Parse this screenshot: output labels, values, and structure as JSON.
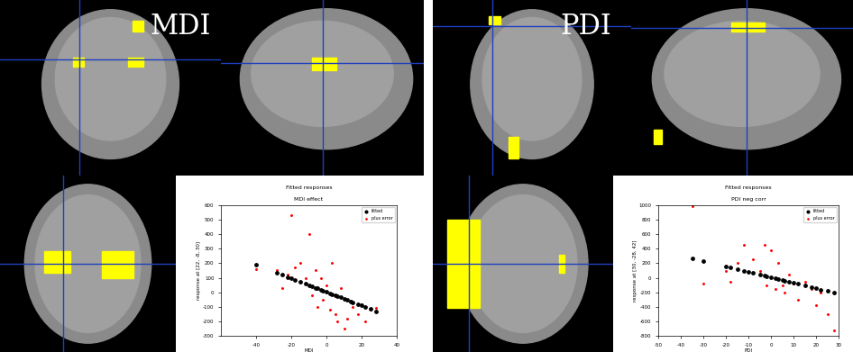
{
  "images": [
    {
      "label": "MDI"
    },
    {
      "label": "PDI"
    }
  ],
  "chart_data": [
    {
      "type": "scatter",
      "title": "Fitted responses",
      "subtitle": "MDI effect",
      "x_label": "MDI",
      "y_label": "response at [22, -8, 30]",
      "x": [
        -40,
        -28,
        -25,
        -22,
        -20,
        -18,
        -15,
        -12,
        -10,
        -8,
        -6,
        -5,
        -3,
        -2,
        0,
        2,
        3,
        5,
        6,
        8,
        10,
        12,
        14,
        15,
        18,
        20,
        22,
        25,
        28
      ],
      "series": [
        {
          "name": "fitted",
          "color": "#000000",
          "marker": "o",
          "values": [
            190,
            133,
            120,
            105,
            96,
            87,
            73,
            58,
            49,
            40,
            30,
            26,
            16,
            11,
            2,
            -7,
            -12,
            -21,
            -26,
            -36,
            -45,
            -54,
            -64,
            -68,
            -83,
            -92,
            -101,
            -115,
            -130
          ]
        },
        {
          "name": "plus error",
          "color": "#ff0000",
          "marker": ".",
          "values": [
            160,
            150,
            30,
            120,
            530,
            170,
            200,
            100,
            400,
            -20,
            150,
            -100,
            100,
            -50,
            50,
            -120,
            200,
            -150,
            -200,
            30,
            -250,
            -180,
            -60,
            -100,
            -150,
            -80,
            -200,
            -120,
            -110
          ]
        }
      ],
      "xlim": [
        -60,
        40
      ],
      "xticks": [
        -40,
        -20,
        0,
        20,
        40
      ],
      "ylim": [
        -300,
        600
      ],
      "yticks": [
        -300,
        -200,
        -100,
        0,
        100,
        200,
        300,
        400,
        500,
        600
      ],
      "legend": "upper right"
    },
    {
      "type": "scatter",
      "title": "Fitted responses",
      "subtitle": "PDI neg corr",
      "x_label": "PDI",
      "y_label": "response at [30, -28, 42]",
      "x": [
        -35,
        -30,
        -20,
        -18,
        -15,
        -12,
        -10,
        -8,
        -5,
        -3,
        -2,
        0,
        2,
        3,
        5,
        6,
        8,
        10,
        12,
        15,
        18,
        20,
        22,
        25,
        28
      ],
      "series": [
        {
          "name": "fitted",
          "color": "#000000",
          "marker": "o",
          "values": [
            271,
            233,
            157,
            142,
            119,
            96,
            81,
            66,
            43,
            28,
            20,
            5,
            -10,
            -18,
            -33,
            -41,
            -56,
            -71,
            -86,
            -109,
            -132,
            -147,
            -162,
            -185,
            -208
          ]
        },
        {
          "name": "plus error",
          "color": "#ff0000",
          "marker": ".",
          "values": [
            990,
            -80,
            100,
            -50,
            200,
            450,
            80,
            250,
            100,
            450,
            -100,
            380,
            -150,
            200,
            -100,
            -200,
            50,
            -80,
            -300,
            -50,
            -150,
            -380,
            -200,
            -500,
            -720
          ]
        }
      ],
      "xlim": [
        -50,
        30
      ],
      "xticks": [
        -50,
        -40,
        -30,
        -20,
        -10,
        0,
        10,
        20,
        30
      ],
      "ylim": [
        -800,
        1000
      ],
      "yticks": [
        -800,
        -600,
        -400,
        -200,
        0,
        200,
        400,
        600,
        800,
        1000
      ],
      "legend": "upper right"
    }
  ]
}
